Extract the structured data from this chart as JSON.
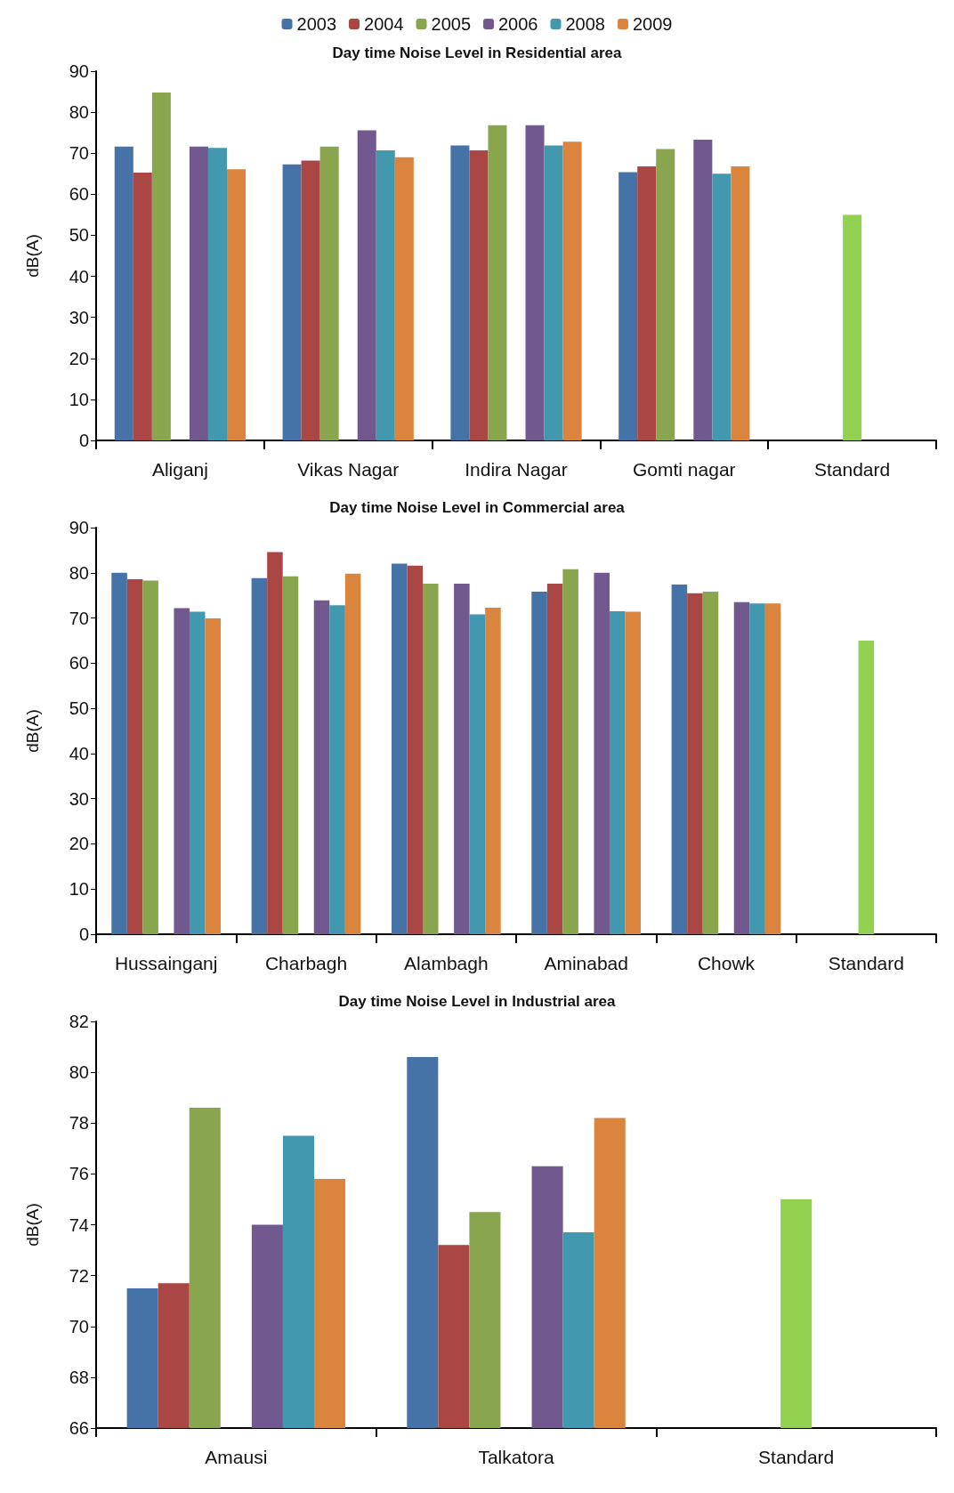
{
  "chart_data": [
    {
      "type": "bar",
      "title": "Day time Noise Level in Residential area",
      "ylabel": "dB(A)",
      "categories": [
        "Aliganj",
        "Vikas Nagar",
        "Indira Nagar",
        "Gomti nagar",
        "Standard"
      ],
      "ylim": [
        0,
        90
      ],
      "yticks": [
        0,
        10,
        20,
        30,
        40,
        50,
        60,
        70,
        80,
        90
      ],
      "grid": false,
      "legend": "top",
      "series": [
        {
          "name": "2003",
          "color": "#4572a7",
          "values": [
            71.6,
            67.3,
            71.9,
            65.4,
            null
          ]
        },
        {
          "name": "2004",
          "color": "#aa4643",
          "values": [
            65.3,
            68.2,
            70.7,
            66.8,
            null
          ]
        },
        {
          "name": "2005",
          "color": "#89a54e",
          "values": [
            84.8,
            71.6,
            76.8,
            71.0,
            null
          ]
        },
        {
          "color": "#92d050",
          "values": [
            null,
            null,
            null,
            null,
            55
          ]
        },
        {
          "name": "2006",
          "color": "#71588f",
          "values": [
            71.6,
            75.6,
            76.8,
            73.3,
            null
          ]
        },
        {
          "name": "2008",
          "color": "#4198af",
          "values": [
            71.3,
            70.7,
            71.9,
            65.0,
            null
          ]
        },
        {
          "name": "2009",
          "color": "#db843d",
          "values": [
            66.1,
            69.0,
            72.8,
            66.8,
            null
          ]
        }
      ]
    },
    {
      "type": "bar",
      "title": "Day time Noise Level in Commercial area",
      "ylabel": "dB(A)",
      "categories": [
        "Hussainganj",
        "Charbagh",
        "Alambagh",
        "Aminabad",
        "Chowk",
        "Standard"
      ],
      "ylim": [
        0,
        90
      ],
      "yticks": [
        0,
        10,
        20,
        30,
        40,
        50,
        60,
        70,
        80,
        90
      ],
      "grid": false,
      "series": [
        {
          "name": "2003",
          "color": "#4572a7",
          "values": [
            80.0,
            78.8,
            82.0,
            75.8,
            77.4,
            null
          ]
        },
        {
          "name": "2004",
          "color": "#aa4643",
          "values": [
            78.6,
            84.6,
            81.6,
            77.6,
            75.5,
            null
          ]
        },
        {
          "name": "2005",
          "color": "#89a54e",
          "values": [
            78.3,
            79.2,
            77.6,
            80.8,
            75.8,
            null
          ]
        },
        {
          "color": "#92d050",
          "values": [
            null,
            null,
            null,
            null,
            null,
            65
          ]
        },
        {
          "name": "2006",
          "color": "#71588f",
          "values": [
            72.2,
            73.9,
            77.6,
            80.0,
            73.5,
            null
          ]
        },
        {
          "name": "2008",
          "color": "#4198af",
          "values": [
            71.4,
            72.8,
            70.8,
            71.5,
            73.2,
            null
          ]
        },
        {
          "name": "2009",
          "color": "#db843d",
          "values": [
            69.9,
            79.8,
            72.3,
            71.4,
            73.2,
            null
          ]
        }
      ]
    },
    {
      "type": "bar",
      "title": "Day time Noise Level in Industrial area",
      "ylabel": "dB(A)",
      "categories": [
        "Amausi",
        "Talkatora",
        "Standard"
      ],
      "ylim": [
        66,
        82
      ],
      "yticks": [
        66,
        68,
        70,
        72,
        74,
        76,
        78,
        80,
        82
      ],
      "grid": false,
      "series": [
        {
          "name": "2003",
          "color": "#4572a7",
          "values": [
            71.5,
            80.6,
            null
          ]
        },
        {
          "name": "2004",
          "color": "#aa4643",
          "values": [
            71.7,
            73.2,
            null
          ]
        },
        {
          "name": "2005",
          "color": "#89a54e",
          "values": [
            78.6,
            74.5,
            null
          ]
        },
        {
          "color": "#92d050",
          "values": [
            null,
            null,
            75.0
          ]
        },
        {
          "name": "2006",
          "color": "#71588f",
          "values": [
            74.0,
            76.3,
            null
          ]
        },
        {
          "name": "2008",
          "color": "#4198af",
          "values": [
            77.5,
            73.7,
            null
          ]
        },
        {
          "name": "2009",
          "color": "#db843d",
          "values": [
            75.8,
            78.2,
            null
          ]
        }
      ]
    }
  ]
}
